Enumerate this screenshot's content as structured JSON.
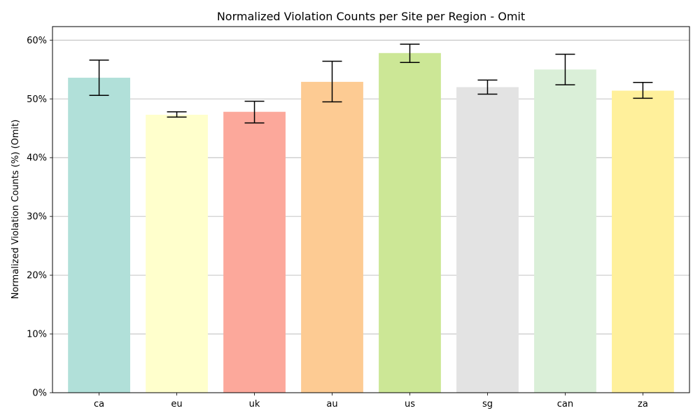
{
  "chart_data": {
    "type": "bar",
    "title": "Normalized Violation Counts per Site per Region - Omit",
    "xlabel": "",
    "ylabel": "Normalized Violation Counts (%) (Omit)",
    "categories": [
      "ca",
      "eu",
      "uk",
      "au",
      "us",
      "sg",
      "can",
      "za"
    ],
    "values": [
      53.6,
      47.3,
      47.8,
      52.9,
      57.8,
      52.0,
      55.0,
      51.4
    ],
    "error_low": [
      50.6,
      46.9,
      45.9,
      49.5,
      56.2,
      50.8,
      52.4,
      50.1
    ],
    "error_high": [
      56.6,
      47.8,
      49.6,
      56.4,
      59.3,
      53.2,
      57.6,
      52.8
    ],
    "colors": [
      "#b1e0d9",
      "#ffffcc",
      "#fca89b",
      "#fdcb93",
      "#cce796",
      "#e3e3e3",
      "#daefd8",
      "#fff09b"
    ],
    "ylim": [
      0,
      62.3
    ],
    "yticks": [
      0,
      10,
      20,
      30,
      40,
      50,
      60
    ],
    "ytick_labels": [
      "0%",
      "10%",
      "20%",
      "30%",
      "40%",
      "50%",
      "60%"
    ],
    "grid": "y",
    "legend": "none"
  }
}
